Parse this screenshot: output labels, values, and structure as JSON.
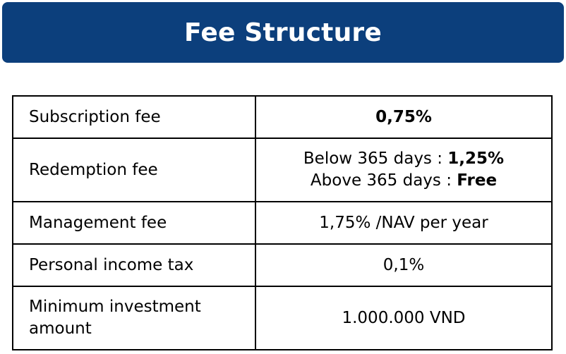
{
  "header": {
    "title": "Fee Structure"
  },
  "colors": {
    "banner": "#0c3f7c",
    "banner_text": "#ffffff",
    "border": "#000000"
  },
  "fees": {
    "subscription": {
      "label": "Subscription fee",
      "value": "0,75%"
    },
    "redemption": {
      "label": "Redemption fee",
      "below_prefix": "Below 365 days : ",
      "below_value": "1,25%",
      "above_prefix": "Above 365 days : ",
      "above_value": "Free"
    },
    "management": {
      "label": "Management fee",
      "value": "1,75% /NAV per year"
    },
    "income_tax": {
      "label": "Personal income tax",
      "value": "0,1%"
    },
    "minimum_investment": {
      "label_line1": "Minimum investment",
      "label_line2": "amount",
      "value": "1.000.000 VND"
    }
  }
}
